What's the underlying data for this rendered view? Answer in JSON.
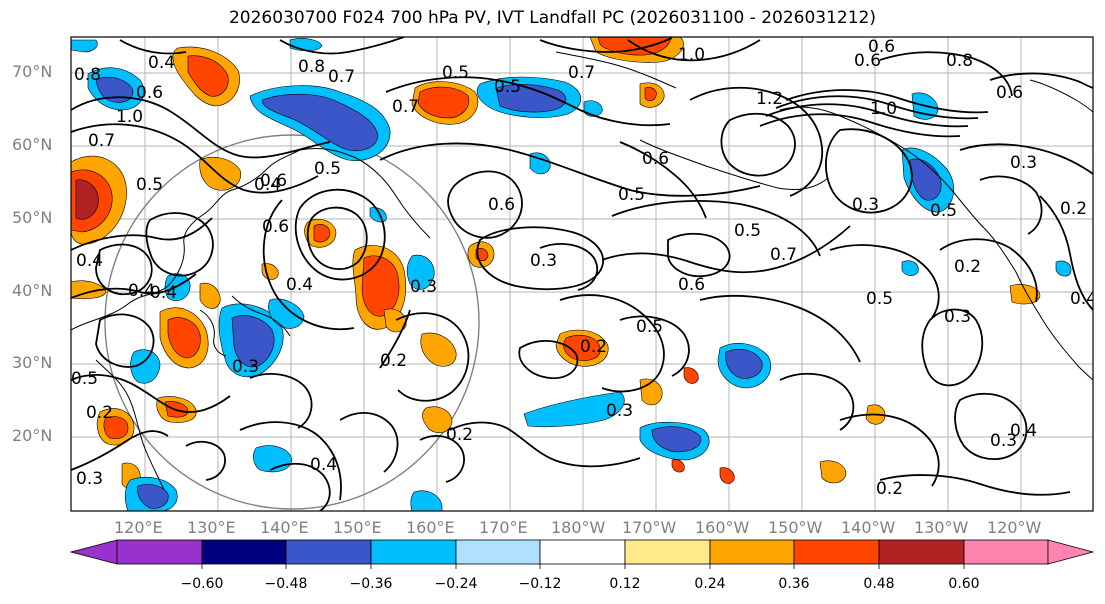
{
  "title": "2026030700 F024 700 hPa PV, IVT Landfall PC (2026031100 - 2026031212)",
  "map": {
    "lat_labels": [
      "70°N",
      "60°N",
      "50°N",
      "40°N",
      "30°N",
      "20°N"
    ],
    "lon_labels": [
      "120°E",
      "130°E",
      "140°E",
      "150°E",
      "160°E",
      "170°E",
      "180°W",
      "170°W",
      "160°W",
      "150°W",
      "140°W",
      "130°W",
      "120°W"
    ],
    "contour_labels": [
      "0.8",
      "0.4",
      "0.6",
      "1.0",
      "0.8",
      "0.7",
      "0.5",
      "0.5",
      "0.7",
      "0.6",
      "1.0",
      "0.6",
      "0.7",
      "0.8",
      "0.6",
      "1.2",
      "1.0",
      "0.7",
      "0.5",
      "0.6",
      "0.5",
      "0.4",
      "0.5",
      "0.6",
      "0.7",
      "0.3",
      "0.5",
      "0.3",
      "0.3",
      "0.4",
      "0.6",
      "0.4",
      "0.3",
      "0.4",
      "0.2",
      "0.5",
      "0.6",
      "0.5",
      "0.3",
      "0.2",
      "0.5",
      "0.3",
      "0.4",
      "0.2",
      "0.3",
      "0.5",
      "0.6",
      "0.2",
      "0.4",
      "0.3",
      "0.3",
      "0.4",
      "0.2",
      "0.4",
      "0.2",
      "0.2"
    ]
  },
  "colorbar": {
    "ticks": [
      "−0.60",
      "−0.48",
      "−0.36",
      "−0.24",
      "−0.12",
      "0.12",
      "0.24",
      "0.36",
      "0.48",
      "0.60"
    ],
    "colors": [
      "#9932cc",
      "#000080",
      "#3a56c9",
      "#00bfff",
      "#b0e0ff",
      "#ffffff",
      "#ffea8a",
      "#ffa500",
      "#ff4500",
      "#b22222",
      "#ff85b0"
    ]
  }
}
